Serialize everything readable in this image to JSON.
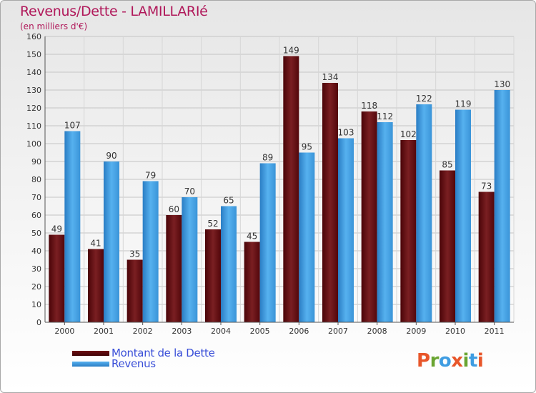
{
  "header": {
    "title": "Revenus/Dette - LAMILLARIé",
    "subtitle": "(en milliers d'€)"
  },
  "legend": {
    "items": [
      {
        "label": "Montant de la Dette",
        "color": "#6e0f14"
      },
      {
        "label": "Revenus",
        "color": "#3f9de2"
      }
    ]
  },
  "logo": {
    "text": "Proxiti",
    "colors": [
      "#e8562a",
      "#6aa532",
      "#3f9de2",
      "#e8562a",
      "#6aa532",
      "#3f9de2",
      "#e8562a"
    ]
  },
  "chart_data": {
    "type": "bar",
    "title": "Revenus/Dette - LAMILLARIé",
    "subtitle": "(en milliers d'€)",
    "categories": [
      "2000",
      "2001",
      "2002",
      "2003",
      "2004",
      "2005",
      "2006",
      "2007",
      "2008",
      "2009",
      "2010",
      "2011"
    ],
    "series": [
      {
        "name": "Montant de la Dette",
        "color": "#6e0f14",
        "values": [
          49,
          41,
          35,
          60,
          52,
          45,
          149,
          134,
          118,
          102,
          85,
          73
        ]
      },
      {
        "name": "Revenus",
        "color": "#3f9de2",
        "values": [
          107,
          90,
          79,
          70,
          65,
          89,
          95,
          103,
          112,
          122,
          119,
          130
        ]
      }
    ],
    "ylim": [
      0,
      160
    ],
    "yticks": [
      0,
      10,
      20,
      30,
      40,
      50,
      60,
      70,
      80,
      90,
      100,
      110,
      120,
      130,
      140,
      150,
      160
    ],
    "grid": true,
    "legend_position": "bottom-left"
  }
}
